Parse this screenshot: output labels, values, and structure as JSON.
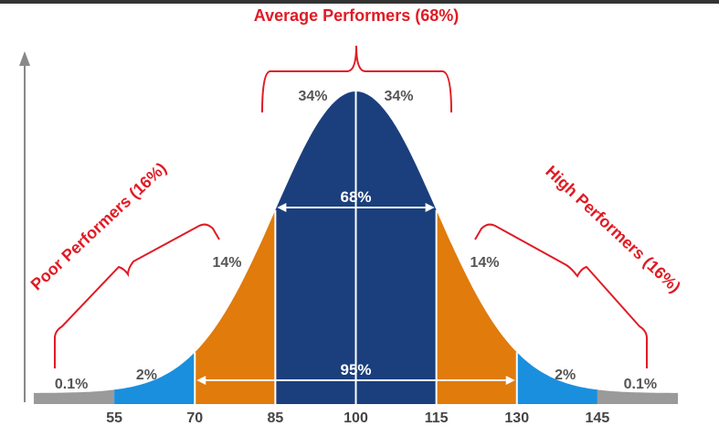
{
  "chart_data": {
    "type": "area",
    "title": "",
    "xlabel": "",
    "ylabel": "",
    "distribution": {
      "mean": 100,
      "sd": 15
    },
    "x_ticks": [
      55,
      70,
      85,
      100,
      115,
      130,
      145
    ],
    "bands": [
      {
        "from": 40,
        "to": 55,
        "color": "#9a9a9a"
      },
      {
        "from": 55,
        "to": 70,
        "color": "#1a8fde"
      },
      {
        "from": 70,
        "to": 85,
        "color": "#e07b0c"
      },
      {
        "from": 85,
        "to": 115,
        "color": "#1b3f7d"
      },
      {
        "from": 115,
        "to": 130,
        "color": "#e07b0c"
      },
      {
        "from": 130,
        "to": 145,
        "color": "#1a8fde"
      },
      {
        "from": 145,
        "to": 160,
        "color": "#9a9a9a"
      }
    ],
    "segment_labels": [
      {
        "text": "0.1%",
        "at": 47
      },
      {
        "text": "2%",
        "at": 61
      },
      {
        "text": "14%",
        "at": 76
      },
      {
        "text": "34%",
        "at": 92
      },
      {
        "text": "34%",
        "at": 108
      },
      {
        "text": "14%",
        "at": 124
      },
      {
        "text": "2%",
        "at": 139
      },
      {
        "text": "0.1%",
        "at": 153
      }
    ],
    "ranges": [
      {
        "text": "68%",
        "from": 85,
        "to": 115
      },
      {
        "text": "95%",
        "from": 70,
        "to": 130
      }
    ],
    "groups": {
      "average": "Average Performers (68%)",
      "poor": "Poor Performers (16%)",
      "high": "High Performers (16%)"
    }
  }
}
